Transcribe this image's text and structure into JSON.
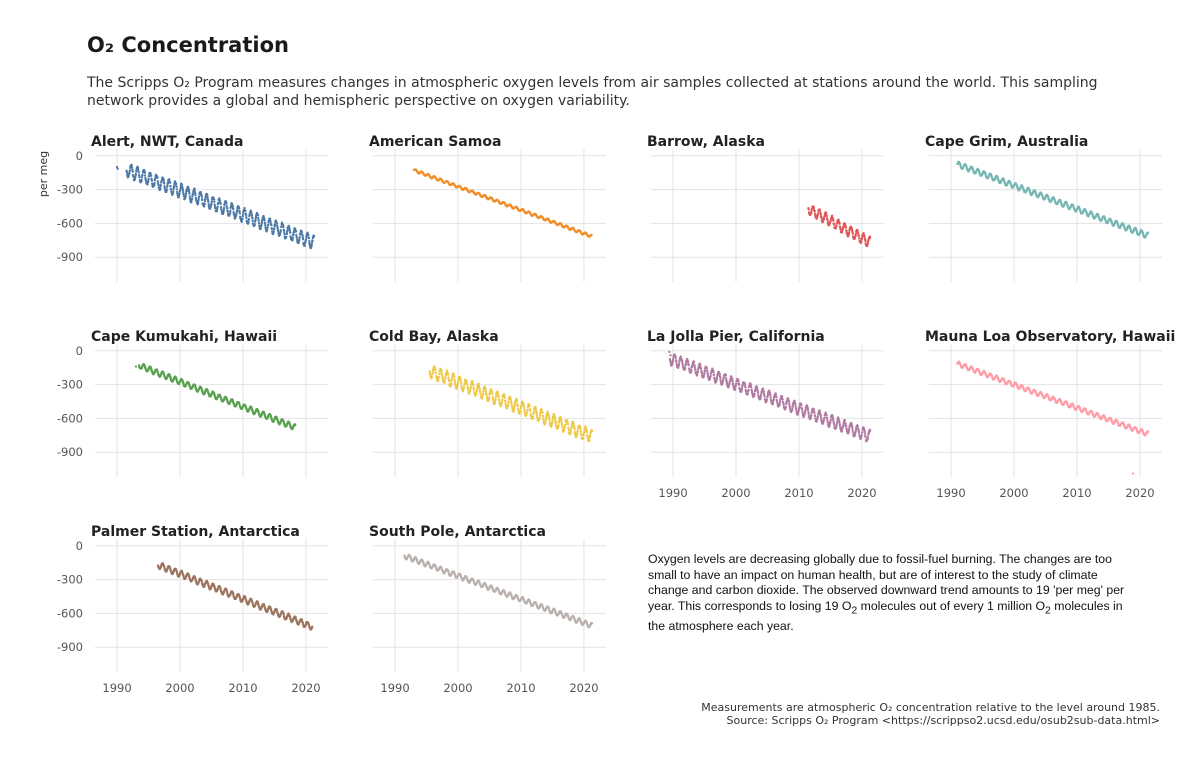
{
  "header": {
    "title": "O₂ Concentration",
    "subtitle": "The Scripps O₂ Program measures changes in atmospheric oxygen levels from air samples collected at stations around the world. This sampling network provides a global and hemispheric perspective on oxygen variability."
  },
  "note": {
    "text_a": "Oxygen levels are decreasing globally due to fossil-fuel burning. The changes are too small to have an impact on human health, but are of interest to the study of climate change and carbon dioxide. The observed downward trend amounts to 19 'per meg' per year. This corresponds to losing 19 O",
    "sub_a": "2",
    "text_b": " molecules out of every 1 million O",
    "sub_b": "2",
    "text_c": " molecules in the atmosphere each year."
  },
  "caption": {
    "line1": "Measurements are atmospheric O₂ concentration relative to the level around 1985.",
    "line2": "Source: Scripps O₂ Program <https://scrippso2.ucsd.edu/osub2sub-data.html>"
  },
  "chart_data": {
    "type": "scatter",
    "facet": true,
    "ylabel": "per meg",
    "xlim": [
      1986.5,
      2023.5
    ],
    "ylim": [
      -1120,
      60
    ],
    "x_ticks": [
      1990,
      2000,
      2010,
      2020
    ],
    "y_ticks": [
      0,
      -300,
      -600,
      -900
    ],
    "grid": true,
    "stations": [
      {
        "name": "Alert, NWT, Canada",
        "color": "#4e79a7",
        "start": 1991.5,
        "end": 2021.3,
        "y_start": -125,
        "y_end": -770,
        "amplitude": 58,
        "outliers": [
          [
            1990.0,
            -100
          ],
          [
            1990.1,
            -115
          ]
        ]
      },
      {
        "name": "American Samoa",
        "color": "#f28e2b",
        "start": 1993.0,
        "end": 2021.2,
        "y_start": -128,
        "y_end": -715,
        "amplitude": 12,
        "outliers": []
      },
      {
        "name": "Barrow, Alaska",
        "color": "#e15759",
        "start": 2011.5,
        "end": 2021.3,
        "y_start": -470,
        "y_end": -770,
        "amplitude": 45,
        "outliers": []
      },
      {
        "name": "Cape Grim, Australia",
        "color": "#76b7b2",
        "start": 1991.0,
        "end": 2021.3,
        "y_start": -75,
        "y_end": -710,
        "amplitude": 24,
        "outliers": []
      },
      {
        "name": "Cape Kumukahi, Hawaii",
        "color": "#59a14f",
        "start": 1993.5,
        "end": 2018.3,
        "y_start": -130,
        "y_end": -680,
        "amplitude": 25,
        "outliers": [
          [
            1993.0,
            -140
          ]
        ]
      },
      {
        "name": "Cold Bay, Alaska",
        "color": "#edc948",
        "start": 1995.5,
        "end": 2021.3,
        "y_start": -180,
        "y_end": -760,
        "amplitude": 55,
        "outliers": []
      },
      {
        "name": "La Jolla Pier, California",
        "color": "#b07aa1",
        "start": 1989.5,
        "end": 2021.3,
        "y_start": -70,
        "y_end": -760,
        "amplitude": 50,
        "outliers": [
          [
            1989.4,
            -10
          ],
          [
            1989.6,
            -40
          ]
        ]
      },
      {
        "name": "Mauna Loa Observatory, Hawaii",
        "color": "#ff9da7",
        "start": 1991.0,
        "end": 2021.3,
        "y_start": -115,
        "y_end": -740,
        "amplitude": 20,
        "outliers": [
          [
            2018.9,
            -1090
          ]
        ]
      },
      {
        "name": "Palmer Station, Antarctica",
        "color": "#9c755f",
        "start": 1996.5,
        "end": 2021.0,
        "y_start": -170,
        "y_end": -720,
        "amplitude": 28,
        "outliers": []
      },
      {
        "name": "South Pole, Antarctica",
        "color": "#bab0ac",
        "start": 1991.5,
        "end": 2021.3,
        "y_start": -90,
        "y_end": -710,
        "amplitude": 22,
        "outliers": []
      }
    ]
  }
}
